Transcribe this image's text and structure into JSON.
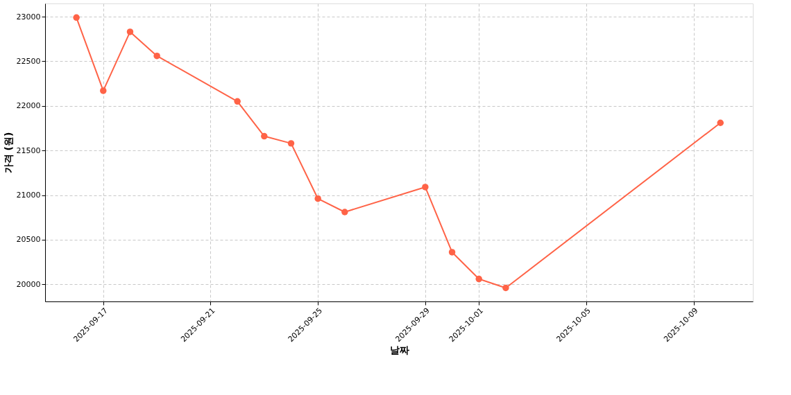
{
  "chart_data": {
    "type": "line",
    "xlabel": "날짜",
    "ylabel": "가격 (원)",
    "x": [
      "2025-09-16",
      "2025-09-17",
      "2025-09-18",
      "2025-09-19",
      "2025-09-22",
      "2025-09-23",
      "2025-09-24",
      "2025-09-25",
      "2025-09-26",
      "2025-09-29",
      "2025-09-30",
      "2025-10-01",
      "2025-10-02",
      "2025-10-10"
    ],
    "series": [
      {
        "color": "#ff6347",
        "values": [
          22990,
          22170,
          22830,
          22560,
          22050,
          21660,
          21580,
          20960,
          20810,
          21090,
          20360,
          20060,
          19960,
          21810
        ]
      }
    ],
    "xlim": [
      "2025-09-14T20:00",
      "2025-10-11T05:00"
    ],
    "xticks": [
      "2025-09-17",
      "2025-09-21",
      "2025-09-25",
      "2025-09-29",
      "2025-10-01",
      "2025-10-05",
      "2025-10-09"
    ],
    "ylim": [
      19808,
      23148
    ],
    "yticks": [
      20000,
      20500,
      21000,
      21500,
      22000,
      22500,
      23000
    ],
    "grid": true,
    "marker": "circle",
    "line_style": "solid"
  }
}
